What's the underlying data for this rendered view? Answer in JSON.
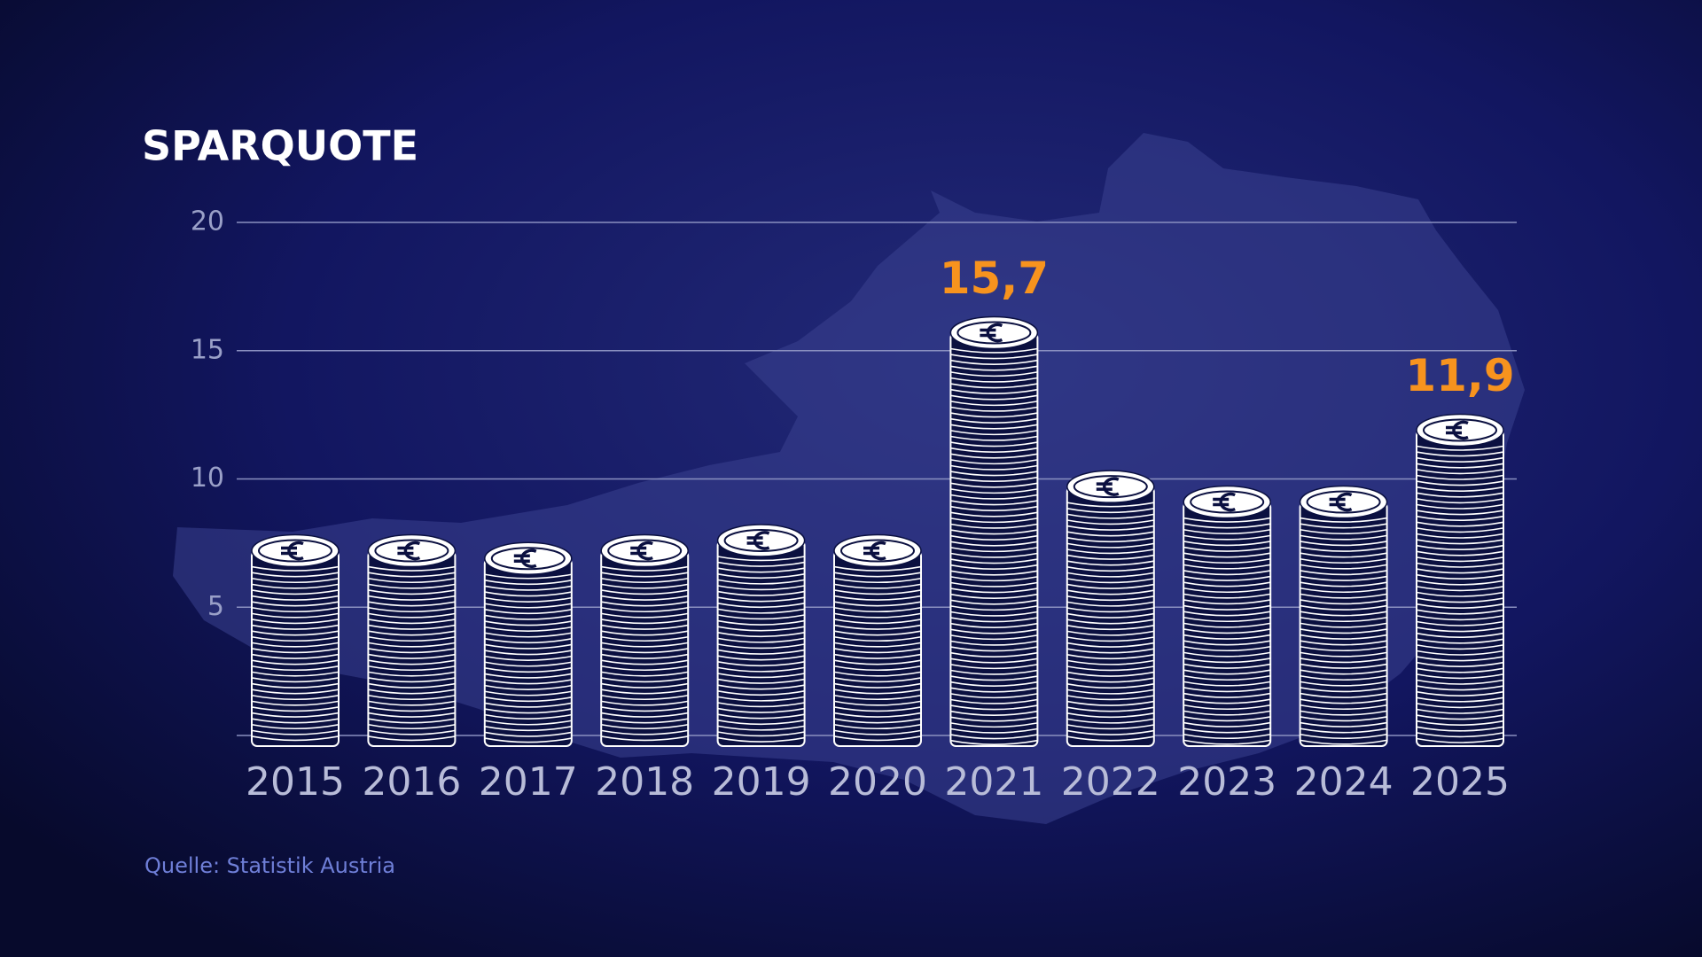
{
  "chart_data": {
    "type": "bar",
    "title": "SPARQUOTE",
    "categories": [
      "2015",
      "2016",
      "2017",
      "2018",
      "2019",
      "2020",
      "2021",
      "2022",
      "2023",
      "2024",
      "2025"
    ],
    "values": [
      7.2,
      7.2,
      6.9,
      7.2,
      7.6,
      7.2,
      15.7,
      9.7,
      9.1,
      9.1,
      11.9
    ],
    "value_labels": [
      null,
      null,
      null,
      null,
      null,
      null,
      "15,7",
      null,
      null,
      null,
      "11,9"
    ],
    "ylim": [
      0,
      20
    ],
    "yticks": [
      5,
      10,
      15,
      20
    ],
    "grid": true,
    "color": "#0b1040",
    "label_color": "#f7931e",
    "source": "Quelle: Statistik Austria"
  }
}
